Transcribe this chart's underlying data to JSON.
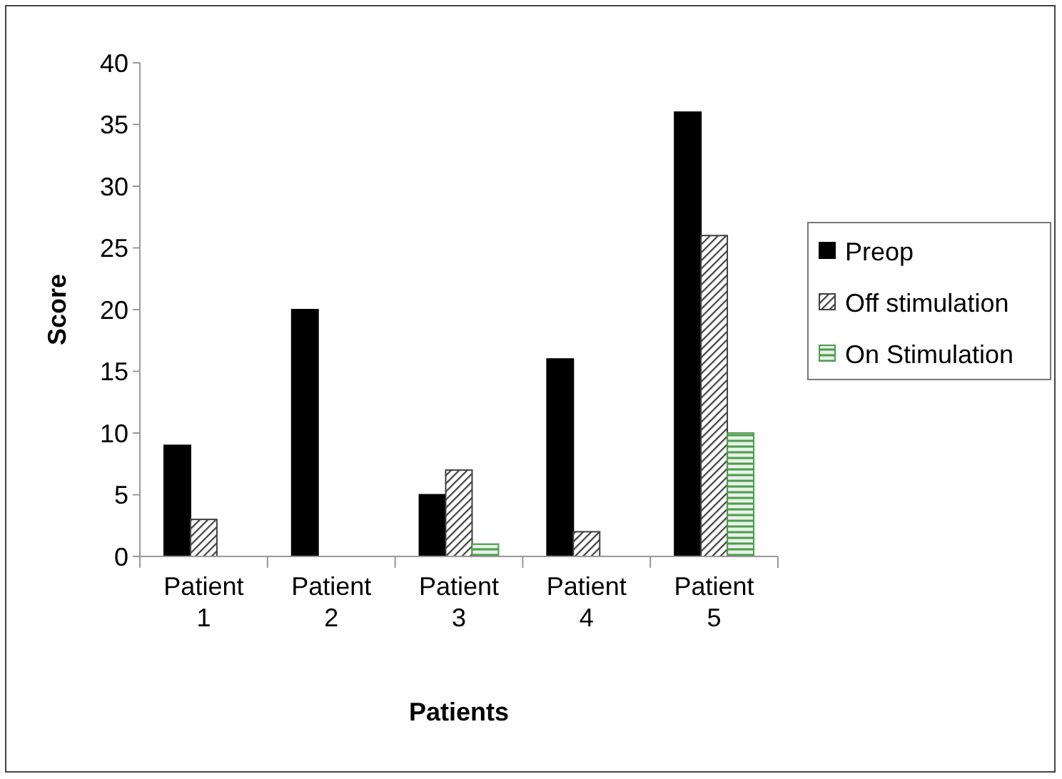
{
  "chart_data": {
    "type": "bar",
    "xlabel": "Patients",
    "ylabel": "Score",
    "categories": [
      "Patient 1",
      "Patient 2",
      "Patient 3",
      "Patient 4",
      "Patient 5"
    ],
    "series": [
      {
        "name": "Preop",
        "color": "#000000",
        "values": [
          9,
          20,
          5,
          16,
          36
        ]
      },
      {
        "name": "Off stimulation",
        "color": "#404040",
        "values": [
          3,
          0,
          7,
          2,
          26
        ]
      },
      {
        "name": "On Stimulation",
        "color": "#4f9a4f",
        "values": [
          0,
          0,
          1,
          0,
          10
        ]
      }
    ],
    "ylim": [
      0,
      40
    ],
    "yticks": [
      0,
      5,
      10,
      15,
      20,
      25,
      30,
      35,
      40
    ],
    "grid": false,
    "legend": "right"
  }
}
